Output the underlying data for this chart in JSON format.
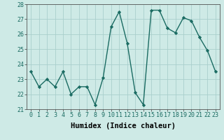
{
  "x": [
    0,
    1,
    2,
    3,
    4,
    5,
    6,
    7,
    8,
    9,
    10,
    11,
    12,
    13,
    14,
    15,
    16,
    17,
    18,
    19,
    20,
    21,
    22,
    23
  ],
  "y": [
    23.5,
    22.5,
    23.0,
    22.5,
    23.5,
    22.0,
    22.5,
    22.5,
    21.3,
    23.1,
    26.5,
    27.5,
    25.4,
    22.1,
    21.3,
    27.6,
    27.6,
    26.4,
    26.1,
    27.1,
    26.9,
    25.8,
    24.9,
    23.5
  ],
  "line_color": "#1a6b62",
  "marker": "D",
  "marker_size": 2.2,
  "bg_color": "#ceeae6",
  "grid_color": "#aacfcc",
  "xlabel": "Humidex (Indice chaleur)",
  "ylim": [
    21,
    28
  ],
  "xlim": [
    -0.5,
    23.5
  ],
  "yticks": [
    21,
    22,
    23,
    24,
    25,
    26,
    27,
    28
  ],
  "xticks": [
    0,
    1,
    2,
    3,
    4,
    5,
    6,
    7,
    8,
    9,
    10,
    11,
    12,
    13,
    14,
    15,
    16,
    17,
    18,
    19,
    20,
    21,
    22,
    23
  ],
  "xlabel_fontsize": 7.5,
  "tick_fontsize": 6.0,
  "line_width": 1.0
}
